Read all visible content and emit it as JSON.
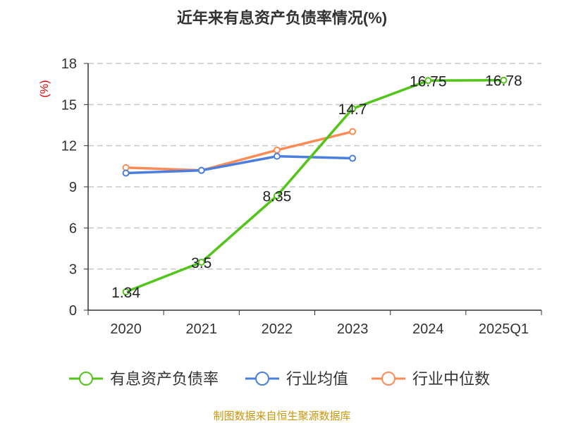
{
  "chart_data": {
    "type": "line",
    "title": "近年来有息资产负债率情况(%)",
    "ylabel": "(%)",
    "xlabel": "",
    "categories": [
      "2020",
      "2021",
      "2022",
      "2023",
      "2024",
      "2025Q1"
    ],
    "ylim": [
      0,
      18
    ],
    "yticks": [
      "0",
      "3",
      "6",
      "9",
      "12",
      "15",
      "18"
    ],
    "grid": true,
    "legend_placement": "bottom",
    "series": [
      {
        "name": "有息资产负债率",
        "color": "#52c41a",
        "values": [
          1.34,
          3.5,
          8.35,
          14.7,
          16.75,
          16.78
        ],
        "labels": [
          "1.34",
          "3.5",
          "8.35",
          "14.7",
          "16.75",
          "16.78"
        ]
      },
      {
        "name": "行业均值",
        "color": "#4a7fe0",
        "values": [
          10.0,
          10.2,
          11.23,
          11.08,
          null,
          null
        ]
      },
      {
        "name": "行业中位数",
        "color": "#fc8b56",
        "values": [
          10.4,
          10.2,
          11.68,
          13.03,
          null,
          null
        ]
      }
    ],
    "source": "制图数据来自恒生聚源数据库"
  }
}
